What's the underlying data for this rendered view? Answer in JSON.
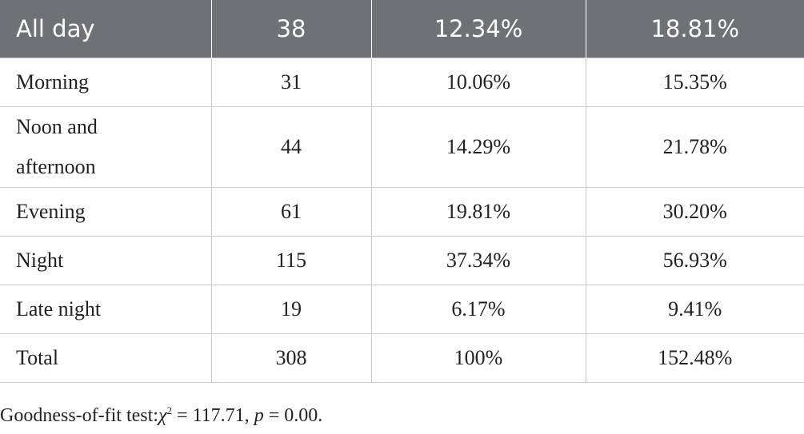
{
  "table": {
    "header": [
      "All day",
      "38",
      "12.34%",
      "18.81%"
    ],
    "rows": [
      [
        "Morning",
        "31",
        "10.06%",
        "15.35%"
      ],
      [
        "Noon and afternoon",
        "44",
        "14.29%",
        "21.78%"
      ],
      [
        "Evening",
        "61",
        "19.81%",
        "30.20%"
      ],
      [
        "Night",
        "115",
        "37.34%",
        "56.93%"
      ],
      [
        "Late night",
        "19",
        "6.17%",
        "9.41%"
      ],
      [
        "Total",
        "308",
        "100%",
        "152.48%"
      ]
    ]
  },
  "footnote": {
    "label": "Goodness-of-fit test:",
    "symbol": "χ",
    "superscript": "2",
    "statistic": "= 117.71,",
    "p_symbol": "p",
    "p_value": "= 0.00."
  }
}
